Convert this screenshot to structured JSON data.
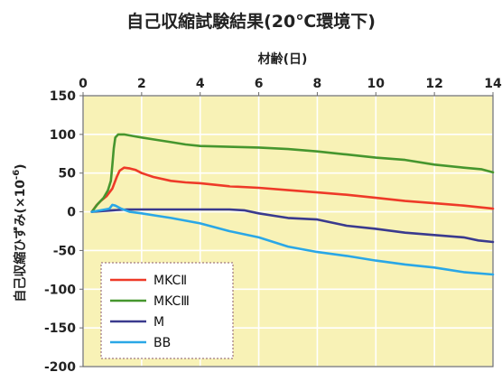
{
  "chart_data": {
    "type": "line",
    "title": "自己収縮試験結果(20℃環境下)",
    "xlabel": "材齢(日)",
    "ylabel": "自己収縮ひずみ(×10-6)",
    "ylabel_parts": {
      "main": "自己収縮ひずみ(×10",
      "superscript": "-6",
      "closing": ")"
    },
    "xlim": [
      0,
      14
    ],
    "ylim": [
      -200,
      150
    ],
    "x_ticks": [
      "0",
      "2",
      "4",
      "6",
      "8",
      "10",
      "12",
      "14"
    ],
    "y_ticks": [
      "150",
      "100",
      "50",
      "0",
      "-50",
      "-100",
      "-150",
      "-200"
    ],
    "x_axis_position": "top",
    "grid": true,
    "plot_background": "#f8f2b6",
    "legend_position": "bottom-left",
    "series": [
      {
        "name": "MKCⅡ",
        "color": "#ee3a28",
        "points": [
          [
            0.3,
            0
          ],
          [
            0.45,
            8
          ],
          [
            0.6,
            14
          ],
          [
            0.8,
            20
          ],
          [
            1.0,
            30
          ],
          [
            1.15,
            45
          ],
          [
            1.25,
            53
          ],
          [
            1.4,
            57
          ],
          [
            1.6,
            56
          ],
          [
            1.8,
            54
          ],
          [
            2.0,
            50
          ],
          [
            2.4,
            45
          ],
          [
            3.0,
            40
          ],
          [
            3.5,
            38
          ],
          [
            4.0,
            37
          ],
          [
            5.0,
            33
          ],
          [
            6.0,
            31
          ],
          [
            7.0,
            28
          ],
          [
            8.0,
            25
          ],
          [
            9.0,
            22
          ],
          [
            10.0,
            18
          ],
          [
            11.0,
            14
          ],
          [
            12.0,
            11
          ],
          [
            13.0,
            8
          ],
          [
            14.0,
            4
          ]
        ]
      },
      {
        "name": "MKCⅢ",
        "color": "#46962e",
        "points": [
          [
            0.3,
            0
          ],
          [
            0.5,
            10
          ],
          [
            0.7,
            18
          ],
          [
            0.85,
            28
          ],
          [
            0.95,
            40
          ],
          [
            1.0,
            60
          ],
          [
            1.05,
            82
          ],
          [
            1.1,
            96
          ],
          [
            1.2,
            100
          ],
          [
            1.4,
            100
          ],
          [
            1.7,
            98
          ],
          [
            2.0,
            96
          ],
          [
            2.5,
            93
          ],
          [
            3.0,
            90
          ],
          [
            3.5,
            87
          ],
          [
            4.0,
            85
          ],
          [
            5.0,
            84
          ],
          [
            6.0,
            83
          ],
          [
            7.0,
            81
          ],
          [
            8.0,
            78
          ],
          [
            9.0,
            74
          ],
          [
            10.0,
            70
          ],
          [
            11.0,
            67
          ],
          [
            12.0,
            61
          ],
          [
            13.0,
            57
          ],
          [
            13.6,
            55
          ],
          [
            14.0,
            51
          ]
        ]
      },
      {
        "name": "M",
        "color": "#3a3a8e",
        "points": [
          [
            0.3,
            0
          ],
          [
            1.0,
            2
          ],
          [
            1.5,
            3
          ],
          [
            2.0,
            3
          ],
          [
            3.0,
            3
          ],
          [
            4.0,
            3
          ],
          [
            5.0,
            3
          ],
          [
            5.5,
            2
          ],
          [
            6.0,
            -2
          ],
          [
            6.5,
            -5
          ],
          [
            7.0,
            -8
          ],
          [
            8.0,
            -10
          ],
          [
            9.0,
            -18
          ],
          [
            10.0,
            -22
          ],
          [
            11.0,
            -27
          ],
          [
            12.0,
            -30
          ],
          [
            13.0,
            -33
          ],
          [
            13.5,
            -37
          ],
          [
            14.0,
            -39
          ]
        ]
      },
      {
        "name": "BB",
        "color": "#2aa7e6",
        "points": [
          [
            0.3,
            0
          ],
          [
            0.6,
            2
          ],
          [
            0.9,
            4
          ],
          [
            1.0,
            9
          ],
          [
            1.1,
            8
          ],
          [
            1.3,
            4
          ],
          [
            1.6,
            0
          ],
          [
            2.0,
            -2
          ],
          [
            2.5,
            -5
          ],
          [
            3.0,
            -8
          ],
          [
            4.0,
            -15
          ],
          [
            5.0,
            -25
          ],
          [
            6.0,
            -33
          ],
          [
            7.0,
            -45
          ],
          [
            8.0,
            -52
          ],
          [
            9.0,
            -57
          ],
          [
            10.0,
            -63
          ],
          [
            11.0,
            -68
          ],
          [
            12.0,
            -72
          ],
          [
            13.0,
            -78
          ],
          [
            14.0,
            -81
          ]
        ]
      }
    ]
  }
}
